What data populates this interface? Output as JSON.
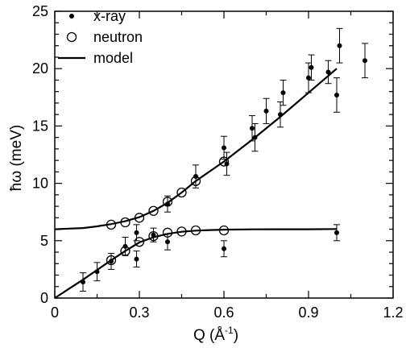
{
  "chart_data": {
    "type": "scatter",
    "xlabel": "Q (Å⁻¹)",
    "xlabel_parts": {
      "main": "Q  (Å",
      "sup": "-1",
      "close": ")"
    },
    "ylabel": "ħω  (meV)",
    "xlim": [
      0,
      1.2
    ],
    "ylim": [
      0,
      25
    ],
    "x_ticks": [
      0,
      0.3,
      0.6,
      0.9,
      1.2
    ],
    "x_tick_labels": [
      "0",
      "0.3",
      "0.6",
      "0.9",
      "1.2"
    ],
    "y_ticks": [
      0,
      5,
      10,
      15,
      20,
      25
    ],
    "y_tick_labels": [
      "0",
      "5",
      "10",
      "15",
      "20",
      "25"
    ],
    "legend": {
      "position": "top-left",
      "entries": [
        "x-ray",
        "neutron",
        "model"
      ]
    },
    "series": [
      {
        "name": "x-ray",
        "marker": "filled-circle",
        "points": [
          {
            "x": 0.1,
            "y": 1.4,
            "err": 0.8
          },
          {
            "x": 0.15,
            "y": 2.3,
            "err": 0.8
          },
          {
            "x": 0.2,
            "y": 3.2,
            "err": 0.7
          },
          {
            "x": 0.25,
            "y": 4.5,
            "err": 0.8
          },
          {
            "x": 0.29,
            "y": 3.4,
            "err": 0.7
          },
          {
            "x": 0.29,
            "y": 5.7,
            "err": 0.7
          },
          {
            "x": 0.35,
            "y": 5.5,
            "err": 0.6
          },
          {
            "x": 0.4,
            "y": 4.9,
            "err": 0.7
          },
          {
            "x": 0.4,
            "y": 8.2,
            "err": 0.7
          },
          {
            "x": 0.5,
            "y": 10.6,
            "err": 1.0
          },
          {
            "x": 0.6,
            "y": 4.3,
            "err": 0.7
          },
          {
            "x": 0.6,
            "y": 13.1,
            "err": 1.0
          },
          {
            "x": 0.61,
            "y": 11.7,
            "err": 1.0
          },
          {
            "x": 0.7,
            "y": 14.8,
            "err": 1.1
          },
          {
            "x": 0.71,
            "y": 14.0,
            "err": 1.2
          },
          {
            "x": 0.75,
            "y": 16.3,
            "err": 1.1
          },
          {
            "x": 0.8,
            "y": 16.0,
            "err": 1.1
          },
          {
            "x": 0.81,
            "y": 17.9,
            "err": 1.1
          },
          {
            "x": 0.9,
            "y": 19.2,
            "err": 1.3
          },
          {
            "x": 0.91,
            "y": 20.1,
            "err": 1.1
          },
          {
            "x": 0.97,
            "y": 19.7,
            "err": 1.0
          },
          {
            "x": 1.0,
            "y": 17.7,
            "err": 1.5
          },
          {
            "x": 1.01,
            "y": 22.0,
            "err": 1.5
          },
          {
            "x": 1.0,
            "y": 5.7,
            "err": 0.7
          },
          {
            "x": 1.1,
            "y": 20.7,
            "err": 1.5
          }
        ]
      },
      {
        "name": "neutron",
        "marker": "open-circle",
        "points": [
          {
            "x": 0.2,
            "y": 3.3
          },
          {
            "x": 0.25,
            "y": 4.1
          },
          {
            "x": 0.3,
            "y": 4.9
          },
          {
            "x": 0.35,
            "y": 5.4
          },
          {
            "x": 0.4,
            "y": 5.7
          },
          {
            "x": 0.45,
            "y": 5.8
          },
          {
            "x": 0.5,
            "y": 5.9
          },
          {
            "x": 0.6,
            "y": 5.9
          },
          {
            "x": 0.2,
            "y": 6.4
          },
          {
            "x": 0.25,
            "y": 6.6
          },
          {
            "x": 0.3,
            "y": 7.0
          },
          {
            "x": 0.35,
            "y": 7.6
          },
          {
            "x": 0.4,
            "y": 8.4
          },
          {
            "x": 0.45,
            "y": 9.2
          },
          {
            "x": 0.5,
            "y": 10.2
          },
          {
            "x": 0.6,
            "y": 11.9
          }
        ]
      },
      {
        "name": "model",
        "marker": "line",
        "branches": [
          {
            "x": [
              0,
              0.05,
              0.1,
              0.15,
              0.2,
              0.25,
              0.3,
              0.35,
              0.4,
              0.45,
              0.5,
              0.55,
              0.6,
              0.7,
              0.8,
              0.9,
              1.0
            ],
            "y": [
              0,
              0.8,
              1.6,
              2.45,
              3.3,
              4.1,
              4.85,
              5.3,
              5.6,
              5.78,
              5.88,
              5.93,
              5.96,
              5.99,
              6.0,
              6.0,
              6.02
            ]
          },
          {
            "x": [
              0,
              0.05,
              0.1,
              0.15,
              0.2,
              0.25,
              0.3,
              0.35,
              0.4,
              0.45,
              0.5,
              0.55,
              0.6,
              0.7,
              0.8,
              0.9,
              1.0
            ],
            "y": [
              6.0,
              6.05,
              6.1,
              6.25,
              6.45,
              6.7,
              7.05,
              7.6,
              8.3,
              9.2,
              10.2,
              11.05,
              11.9,
              13.8,
              15.8,
              17.9,
              20.0
            ]
          }
        ]
      }
    ]
  }
}
